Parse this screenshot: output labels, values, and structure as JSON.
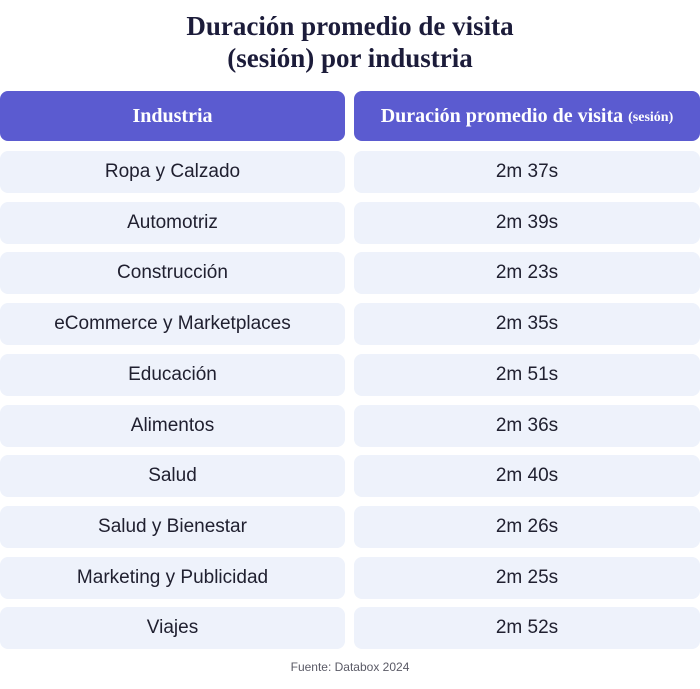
{
  "title": {
    "line1": "Duración promedio de visita",
    "line2": "(sesión) por industria"
  },
  "chart_data": {
    "type": "table",
    "columns": [
      {
        "label": "Industria"
      },
      {
        "label": "Duración promedio de visita",
        "suffix": "(sesión)"
      }
    ],
    "rows": [
      {
        "industry": "Ropa y Calzado",
        "duration": "2m 37s"
      },
      {
        "industry": "Automotriz",
        "duration": "2m 39s"
      },
      {
        "industry": "Construcción",
        "duration": "2m 23s"
      },
      {
        "industry": "eCommerce y Marketplaces",
        "duration": "2m 35s"
      },
      {
        "industry": "Educación",
        "duration": "2m 51s"
      },
      {
        "industry": "Alimentos",
        "duration": "2m 36s"
      },
      {
        "industry": "Salud",
        "duration": "2m 40s"
      },
      {
        "industry": "Salud y Bienestar",
        "duration": "2m 26s"
      },
      {
        "industry": "Marketing y Publicidad",
        "duration": "2m 25s"
      },
      {
        "industry": "Viajes",
        "duration": "2m 52s"
      }
    ]
  },
  "source": "Fuente: Databox 2024",
  "colors": {
    "header_bg": "#5b5bd0",
    "row_bg": "#eef2fb",
    "title": "#1c1c3a"
  }
}
